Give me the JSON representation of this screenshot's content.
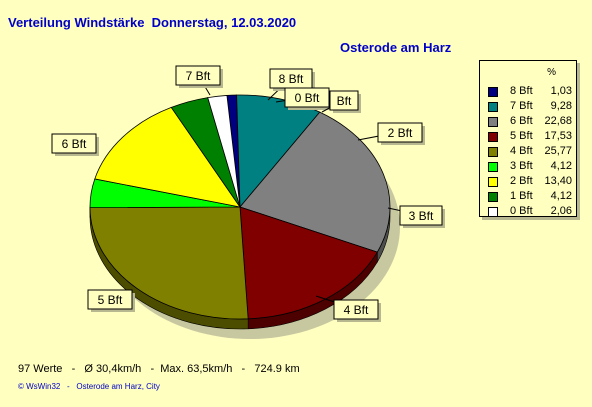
{
  "header": {
    "title": "Verteilung Windstärke  Donnerstag, 12.03.2020",
    "location": "Osterode am Harz"
  },
  "footer": {
    "stats": "97 Werte   -   Ø 30,4km/h   -  Max. 63,5km/h   -   724.9 km",
    "copyright": "© WsWin32   -   Osterode am Harz, City"
  },
  "legend": {
    "unit_header": "%",
    "placement": "top-right"
  },
  "chart_data": {
    "type": "pie",
    "title": "Verteilung Windstärke  Donnerstag, 12.03.2020",
    "subtitle": "Osterode am Harz",
    "slices": [
      {
        "label": "8 Bft",
        "value": 1.03,
        "value_text": "1,03",
        "color": "#000080"
      },
      {
        "label": "7 Bft",
        "value": 9.28,
        "value_text": "9,28",
        "color": "#008080"
      },
      {
        "label": "6 Bft",
        "value": 22.68,
        "value_text": "22,68",
        "color": "#808080"
      },
      {
        "label": "5 Bft",
        "value": 17.53,
        "value_text": "17,53",
        "color": "#800000"
      },
      {
        "label": "4 Bft",
        "value": 25.77,
        "value_text": "25,77",
        "color": "#808000"
      },
      {
        "label": "3 Bft",
        "value": 4.12,
        "value_text": "4,12",
        "color": "#00ff00"
      },
      {
        "label": "2 Bft",
        "value": 13.4,
        "value_text": "13,40",
        "color": "#ffff00"
      },
      {
        "label": "1 Bft",
        "value": 4.12,
        "value_text": "4,12",
        "color": "#008000"
      },
      {
        "label": "0 Bft",
        "value": 2.06,
        "value_text": "2,06",
        "color": "#ffffff"
      }
    ],
    "pie_labels": [
      "7 Bft",
      "8 Bft",
      "0 Bft",
      "Bft",
      "2 Bft",
      "3 Bft",
      "4 Bft",
      "5 Bft",
      "6 Bft"
    ]
  }
}
